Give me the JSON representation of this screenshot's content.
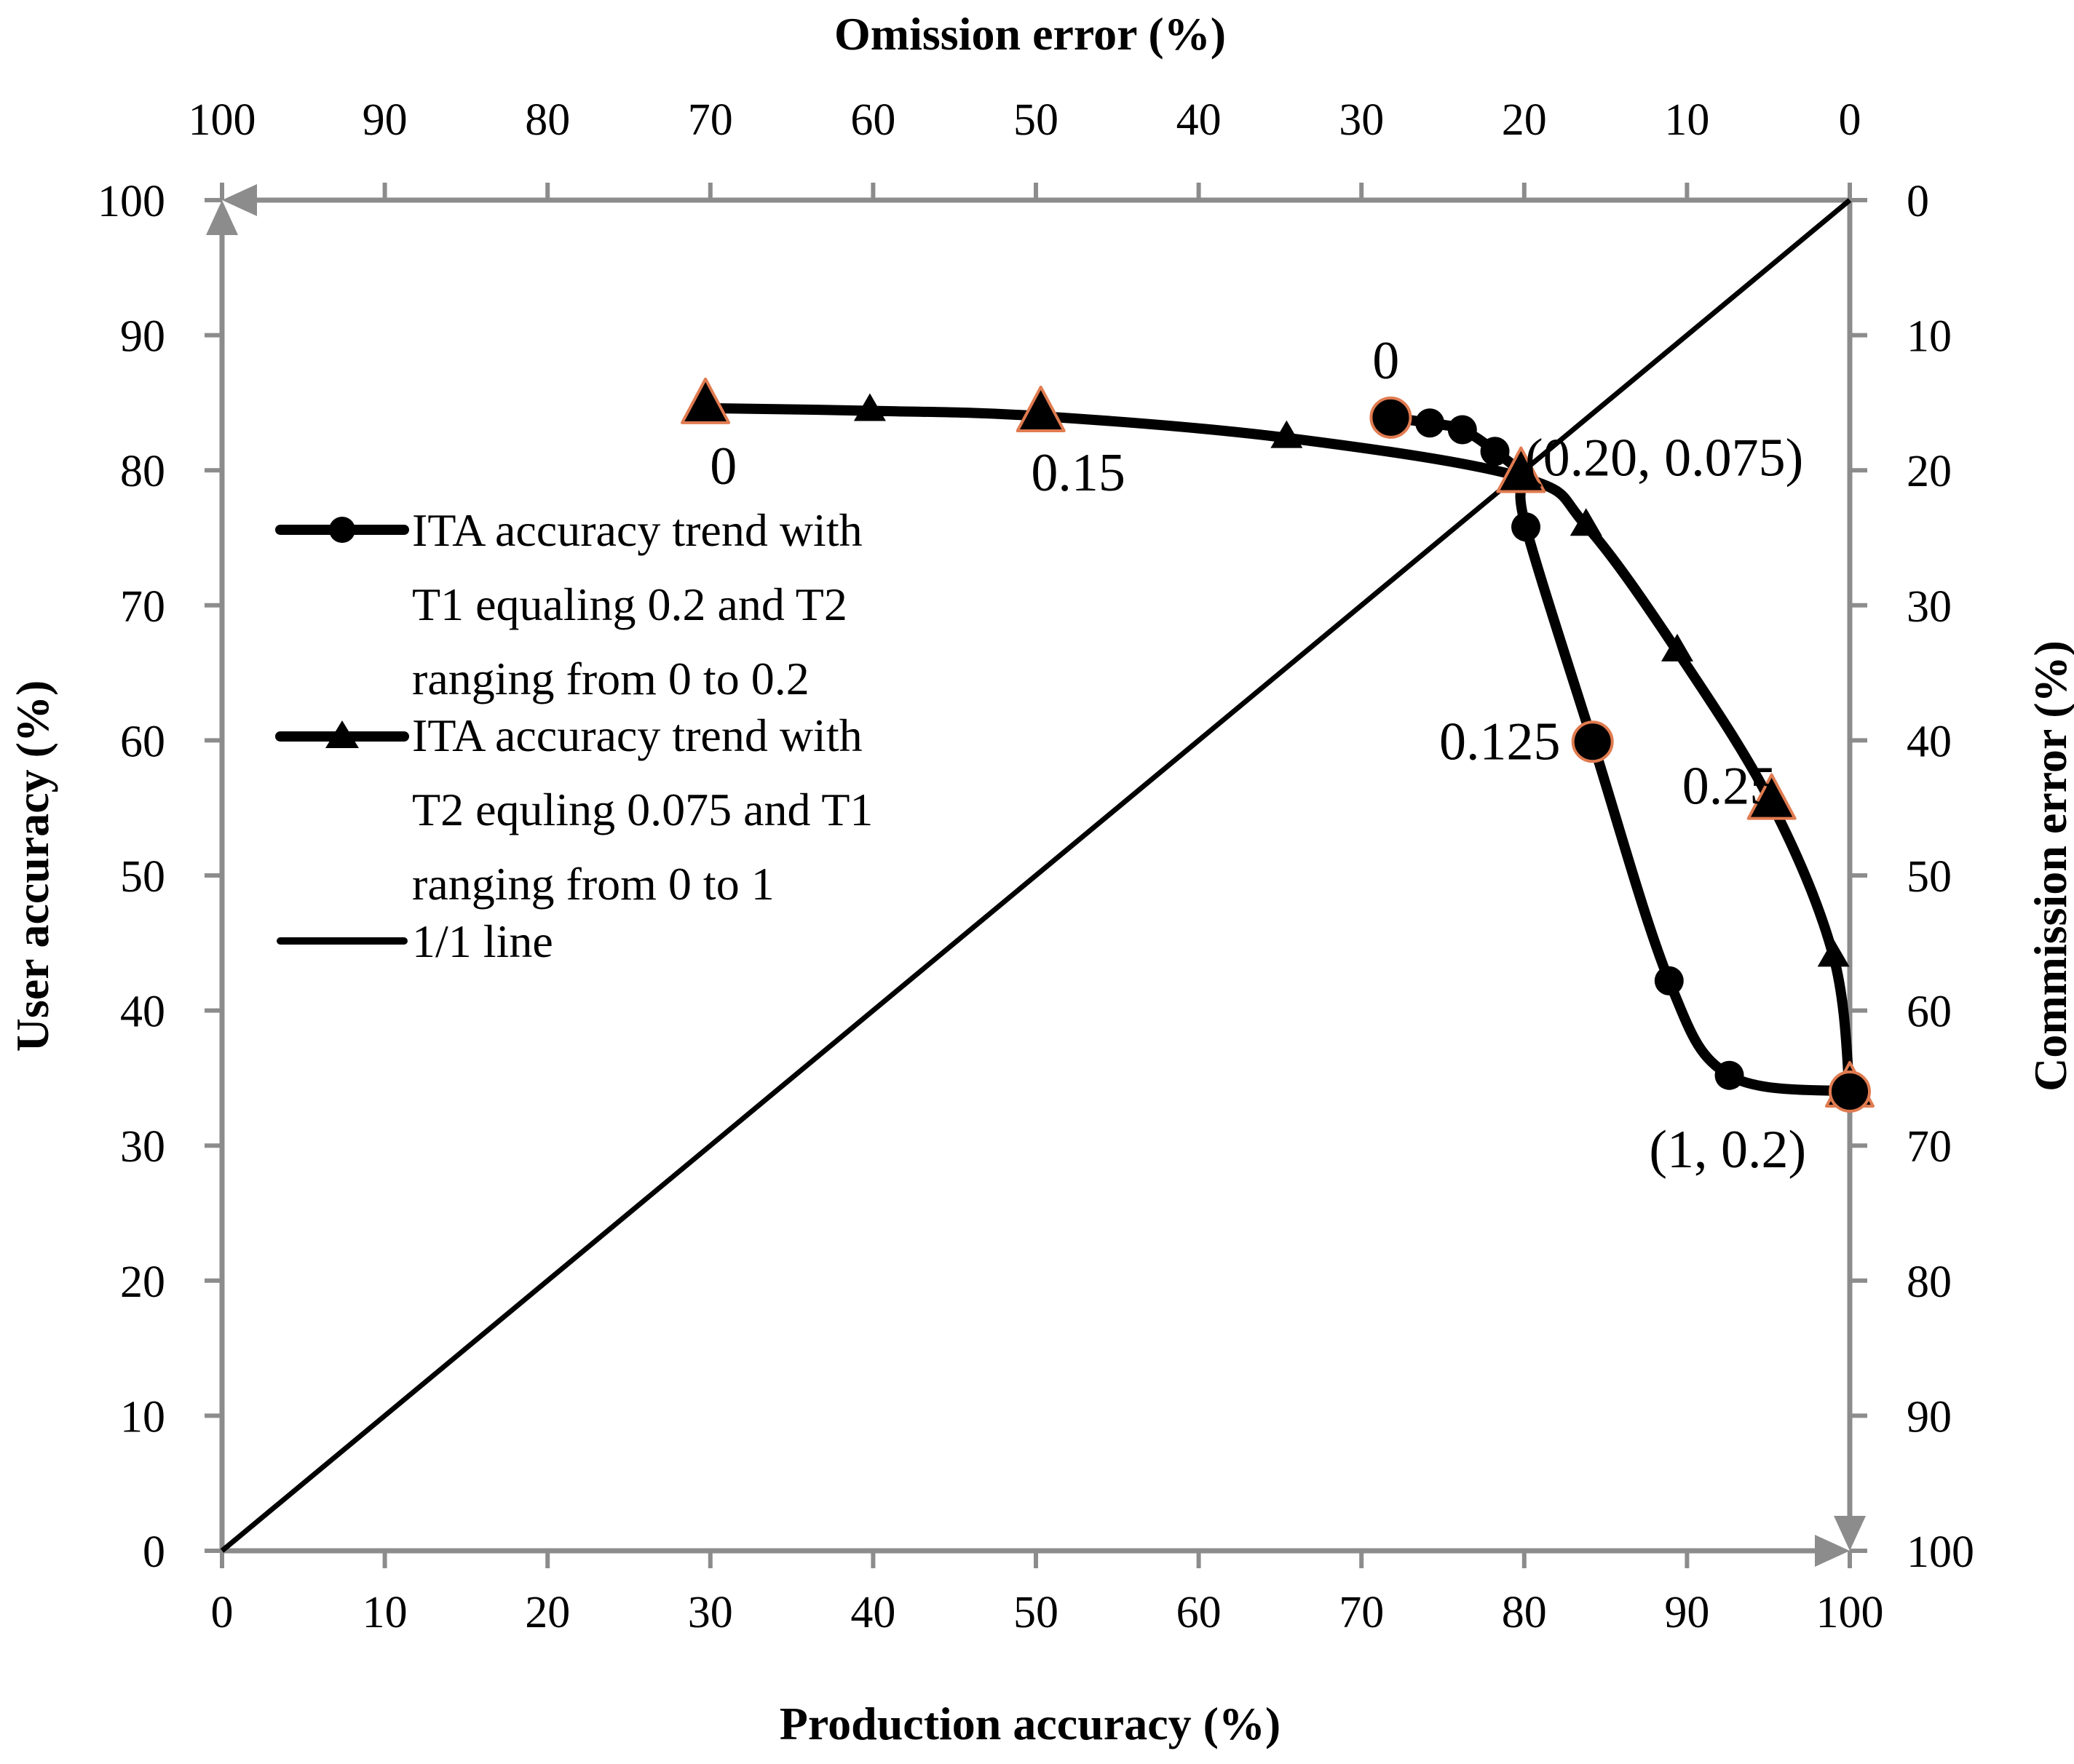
{
  "chart_data": {
    "type": "scatter",
    "title": "",
    "xlabel": "Production accuracy (%)",
    "ylabel": "User accuracy (%)",
    "x2label": "Omission error (%)",
    "y2label": "Commission error (%)",
    "xlim": [
      0,
      100
    ],
    "ylim": [
      0,
      100
    ],
    "x_ticks": [
      "0",
      "10",
      "20",
      "30",
      "40",
      "50",
      "60",
      "70",
      "80",
      "90",
      "100"
    ],
    "y_ticks": [
      "0",
      "10",
      "20",
      "30",
      "40",
      "50",
      "60",
      "70",
      "80",
      "90",
      "100"
    ],
    "x2_ticks": [
      "100",
      "90",
      "80",
      "70",
      "60",
      "50",
      "40",
      "30",
      "20",
      "10",
      "0"
    ],
    "y2_ticks": [
      "0",
      "10",
      "20",
      "30",
      "40",
      "50",
      "60",
      "70",
      "80",
      "90",
      "100"
    ],
    "grid": false,
    "legend_position": "center-left",
    "series": [
      {
        "name": "ITA accuracy trend with T1 equaling 0.2 and T2 ranging from 0 to 0.2",
        "marker": "circle",
        "color": "#000000",
        "x": [
          71.8,
          74.2,
          76.2,
          78.2,
          79.8,
          80.1,
          84.2,
          88.9,
          92.6,
          100.0
        ],
        "y": [
          83.9,
          83.5,
          83.0,
          81.4,
          79.5,
          75.8,
          59.9,
          42.2,
          35.2,
          34.0
        ]
      },
      {
        "name": "ITA accuracy trend with T2 equling 0.075 and T1 ranging from 0 to 1",
        "marker": "triangle",
        "color": "#000000",
        "x": [
          29.7,
          39.8,
          50.3,
          65.4,
          79.8,
          83.8,
          89.4,
          95.2,
          99.0,
          100.0
        ],
        "y": [
          84.6,
          84.4,
          84.0,
          82.4,
          79.5,
          75.9,
          66.6,
          55.3,
          44.0,
          34.0
        ]
      },
      {
        "name": "1/1 line",
        "marker": "none",
        "color": "#000000",
        "x": [
          0,
          100
        ],
        "y": [
          0,
          100
        ]
      }
    ],
    "highlight_points": [
      {
        "x": 29.7,
        "y": 84.6,
        "marker": "triangle"
      },
      {
        "x": 50.3,
        "y": 84.0,
        "marker": "triangle"
      },
      {
        "x": 79.8,
        "y": 79.5,
        "marker": "triangle"
      },
      {
        "x": 95.2,
        "y": 55.3,
        "marker": "triangle"
      },
      {
        "x": 100.0,
        "y": 34.0,
        "marker": "triangle"
      },
      {
        "x": 71.8,
        "y": 83.9,
        "marker": "circle"
      },
      {
        "x": 84.2,
        "y": 59.9,
        "marker": "circle"
      },
      {
        "x": 100.0,
        "y": 34.0,
        "marker": "circle"
      }
    ],
    "annotations": [
      {
        "text": "0",
        "x": 30.8,
        "y": 79.0
      },
      {
        "text": "0.15",
        "x": 52.6,
        "y": 78.5
      },
      {
        "text": "0",
        "x": 71.5,
        "y": 86.8
      },
      {
        "text": "(0.20, 0.075)",
        "x": 88.6,
        "y": 79.6
      },
      {
        "text": "0.125",
        "x": 78.5,
        "y": 58.6
      },
      {
        "text": "0.25",
        "x": 92.6,
        "y": 55.3
      },
      {
        "text": "(1, 0.2)",
        "x": 92.5,
        "y": 28.4
      }
    ],
    "marker_edge_color": "#e07b50"
  }
}
